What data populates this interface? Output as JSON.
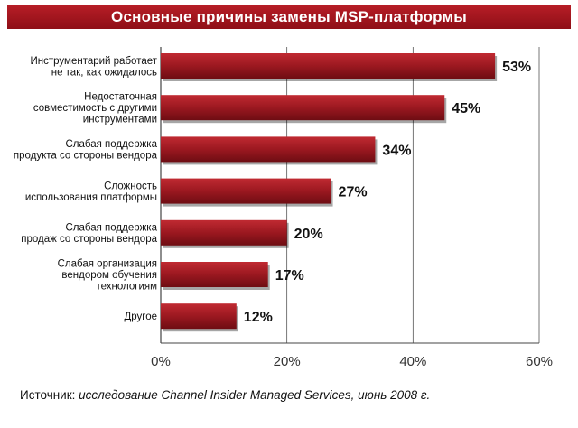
{
  "title": "Основные причины замены MSP-платформы",
  "source": {
    "label": "Источник: ",
    "text": "исследование Channel Insider Managed Services, июнь 2008 г."
  },
  "colors": {
    "title_bg": "#a5151d",
    "bar": "#9b1820",
    "bar_dark": "#6e0d13",
    "text": "#111111"
  },
  "chart_data": {
    "type": "bar",
    "orientation": "horizontal",
    "title": "Основные причины замены MSP-платформы",
    "categories": [
      [
        "Инструментарий работает",
        "не так, как ожидалось"
      ],
      [
        "Недостаточная",
        "совместимость с другими",
        "инструментами"
      ],
      [
        "Слабая поддержка",
        "продукта со стороны вендора"
      ],
      [
        "Сложность",
        "использования платформы"
      ],
      [
        "Слабая поддержка",
        "продаж со стороны вендора"
      ],
      [
        "Слабая организация",
        "вендором обучения",
        "технологиям"
      ],
      [
        "Другое"
      ]
    ],
    "values": [
      53,
      45,
      34,
      27,
      20,
      17,
      12
    ],
    "value_labels": [
      "53%",
      "45%",
      "34%",
      "27%",
      "20%",
      "17%",
      "12%"
    ],
    "xlim": [
      0,
      60
    ],
    "xticks": [
      0,
      20,
      40,
      60
    ],
    "xtick_labels": [
      "0%",
      "20%",
      "40%",
      "60%"
    ],
    "grid": true
  }
}
